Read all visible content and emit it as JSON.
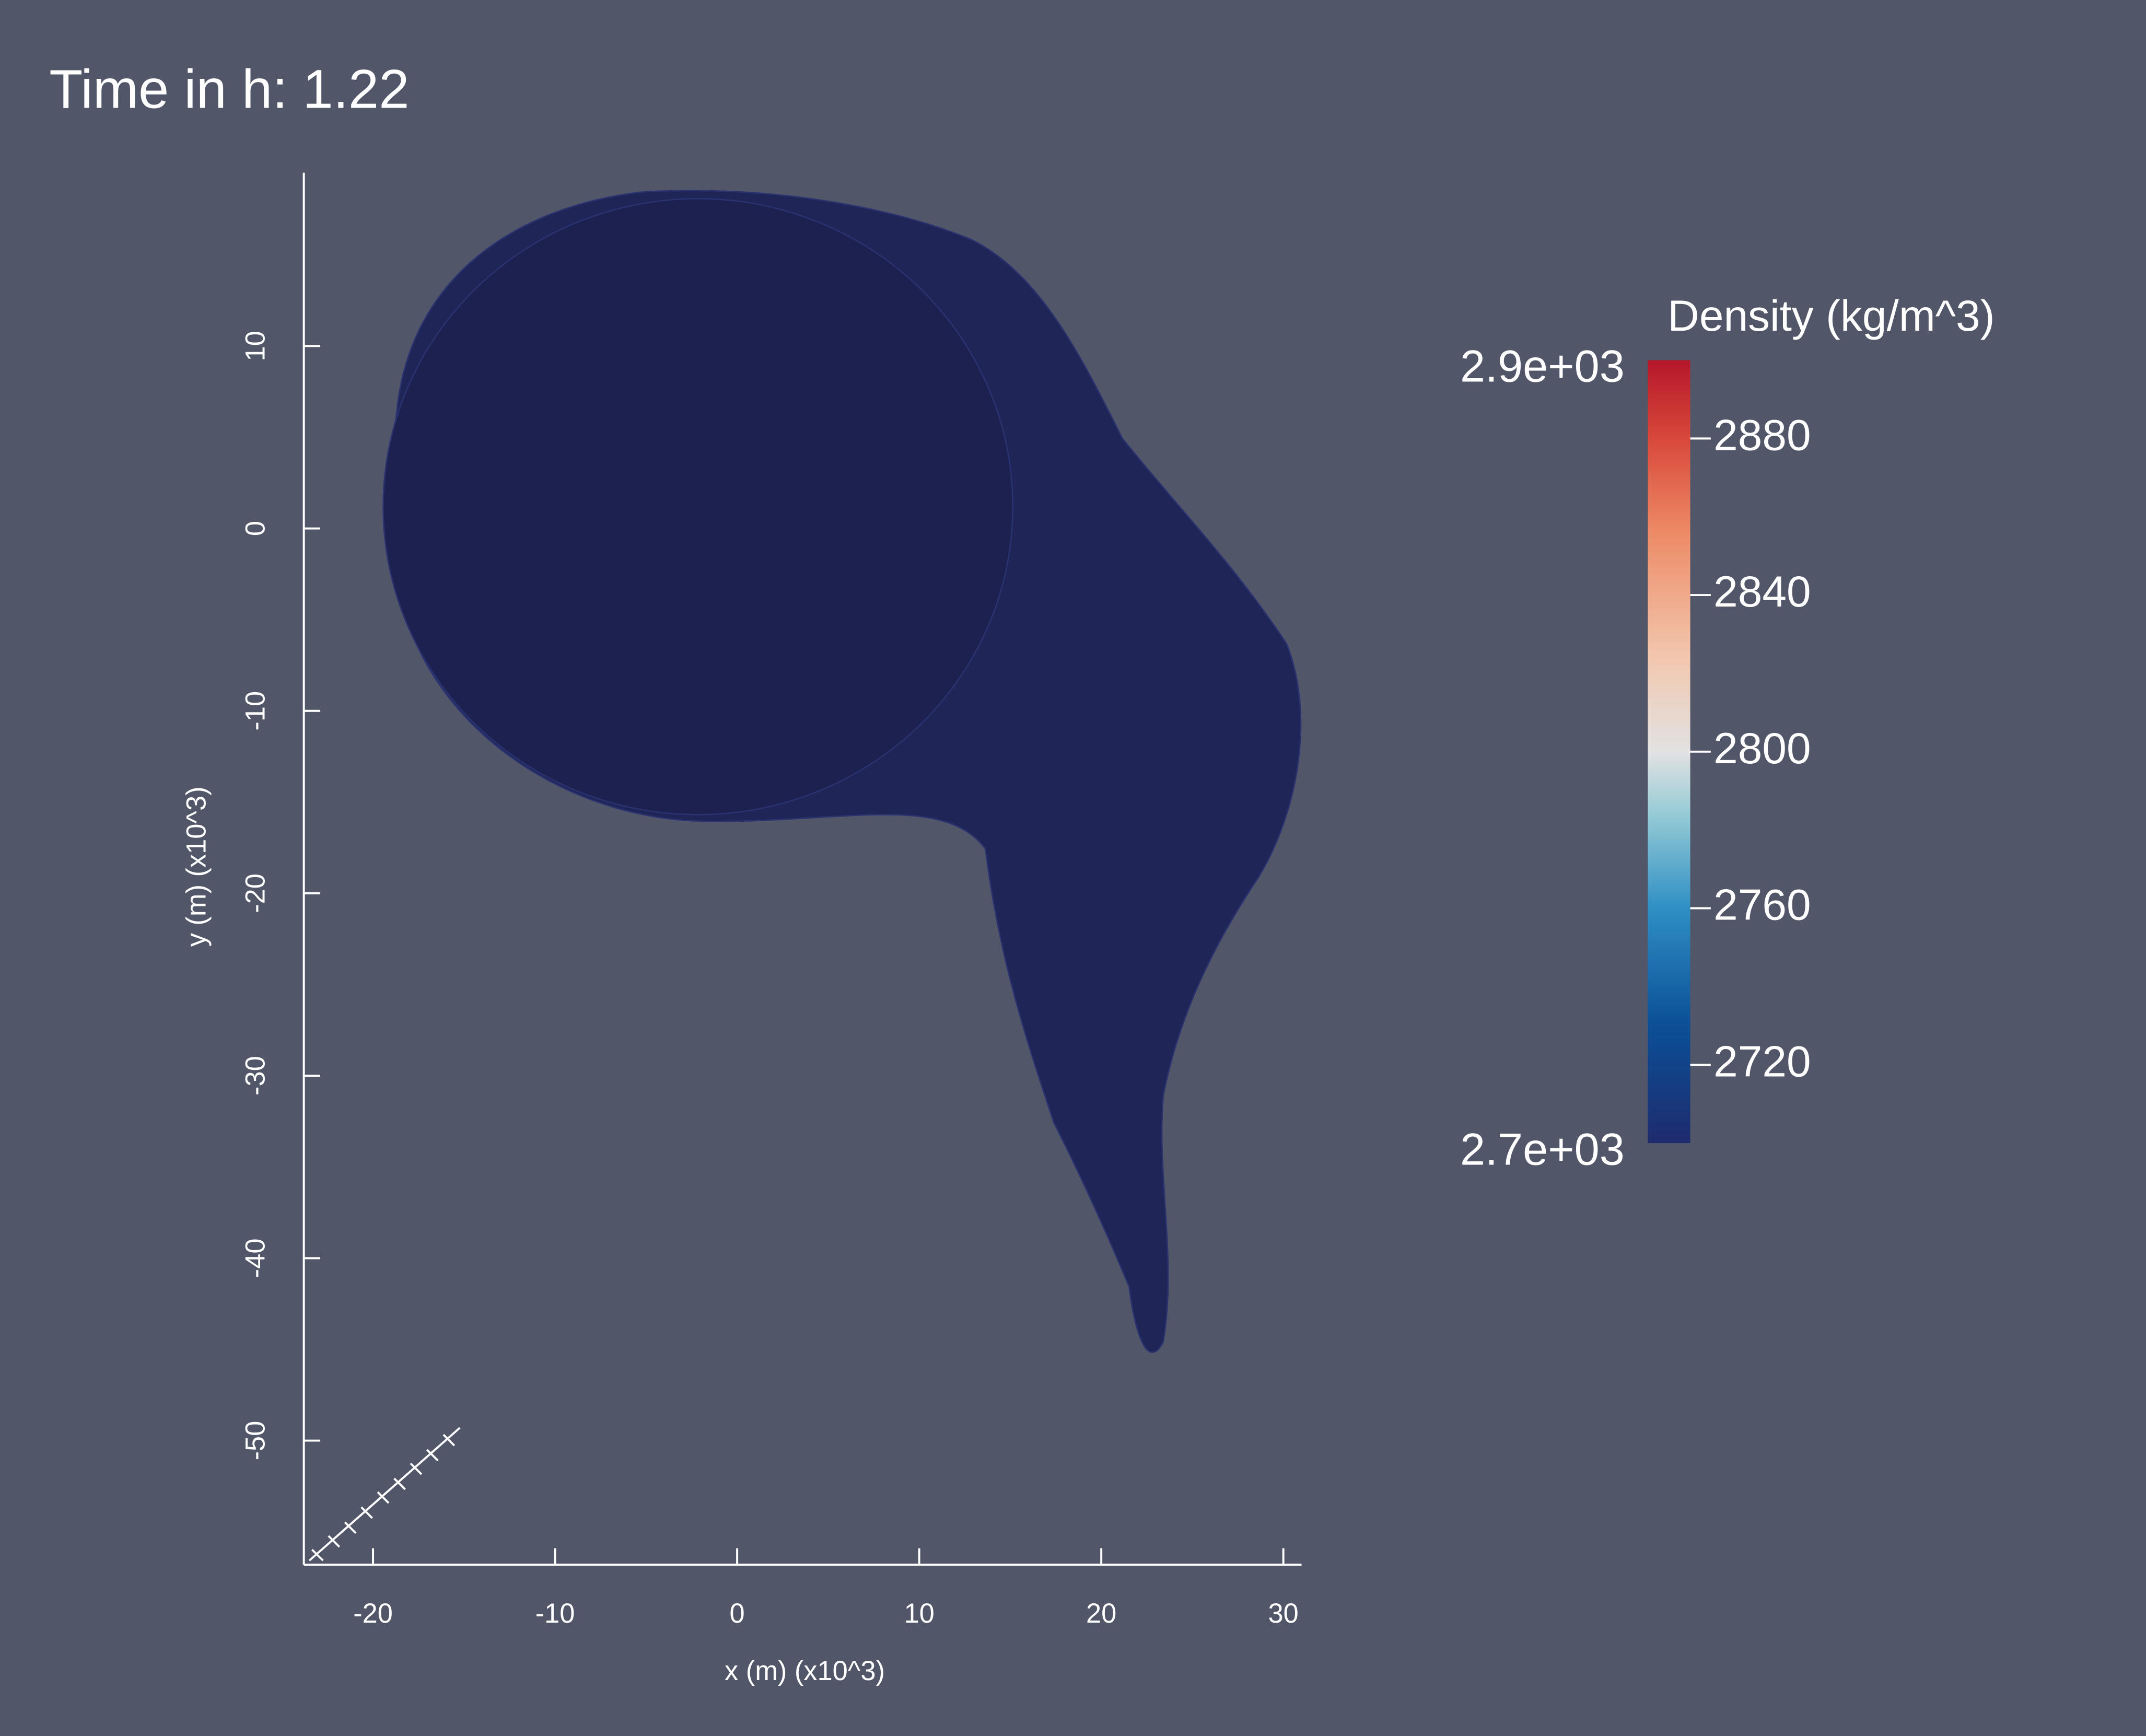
{
  "chart_data": {
    "type": "scatter",
    "title": "Time in h: 1.22",
    "x_label": "x (m) (x10^3)",
    "y_label": "y (m) (x10^3)",
    "xlim": [
      -23.8,
      31
    ],
    "ylim": [
      -56.8,
      19.5
    ],
    "xticks": [
      -20,
      -10,
      0,
      10,
      20,
      30
    ],
    "yticks": [
      -50,
      -40,
      -30,
      -20,
      -10,
      0,
      10
    ],
    "colorbar": {
      "title": "Density (kg/m^3)",
      "lim": [
        2700,
        2900
      ],
      "ends": [
        {
          "value": 2700,
          "label": "2.7e+03"
        },
        {
          "value": 2900,
          "label": "2.9e+03"
        }
      ],
      "ticks": [
        2720,
        2760,
        2800,
        2840,
        2880
      ]
    }
  }
}
